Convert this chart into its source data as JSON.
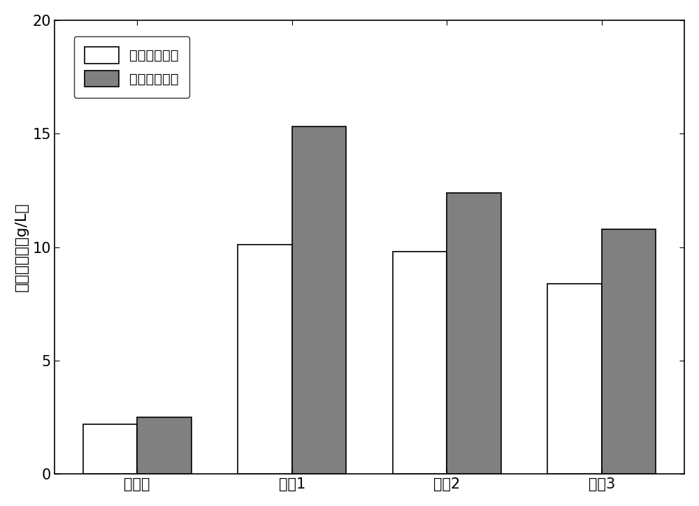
{
  "categories": [
    "未处理",
    "实具1",
    "实具2",
    "实具3"
  ],
  "series1_label": "单独化学处理",
  "series2_label": "细菌强化处理",
  "series1_values": [
    2.2,
    10.1,
    9.8,
    8.4
  ],
  "series2_values": [
    2.5,
    15.3,
    12.4,
    10.8
  ],
  "bar_color1": "#ffffff",
  "bar_color2": "#808080",
  "bar_edgecolor": "#000000",
  "ylabel": "还原糖产量（g/L）",
  "ylim": [
    0,
    20
  ],
  "yticks": [
    0,
    5,
    10,
    15,
    20
  ],
  "bar_width": 0.35,
  "background_color": "#ffffff",
  "label_fontsize": 16,
  "tick_fontsize": 15,
  "legend_fontsize": 14
}
